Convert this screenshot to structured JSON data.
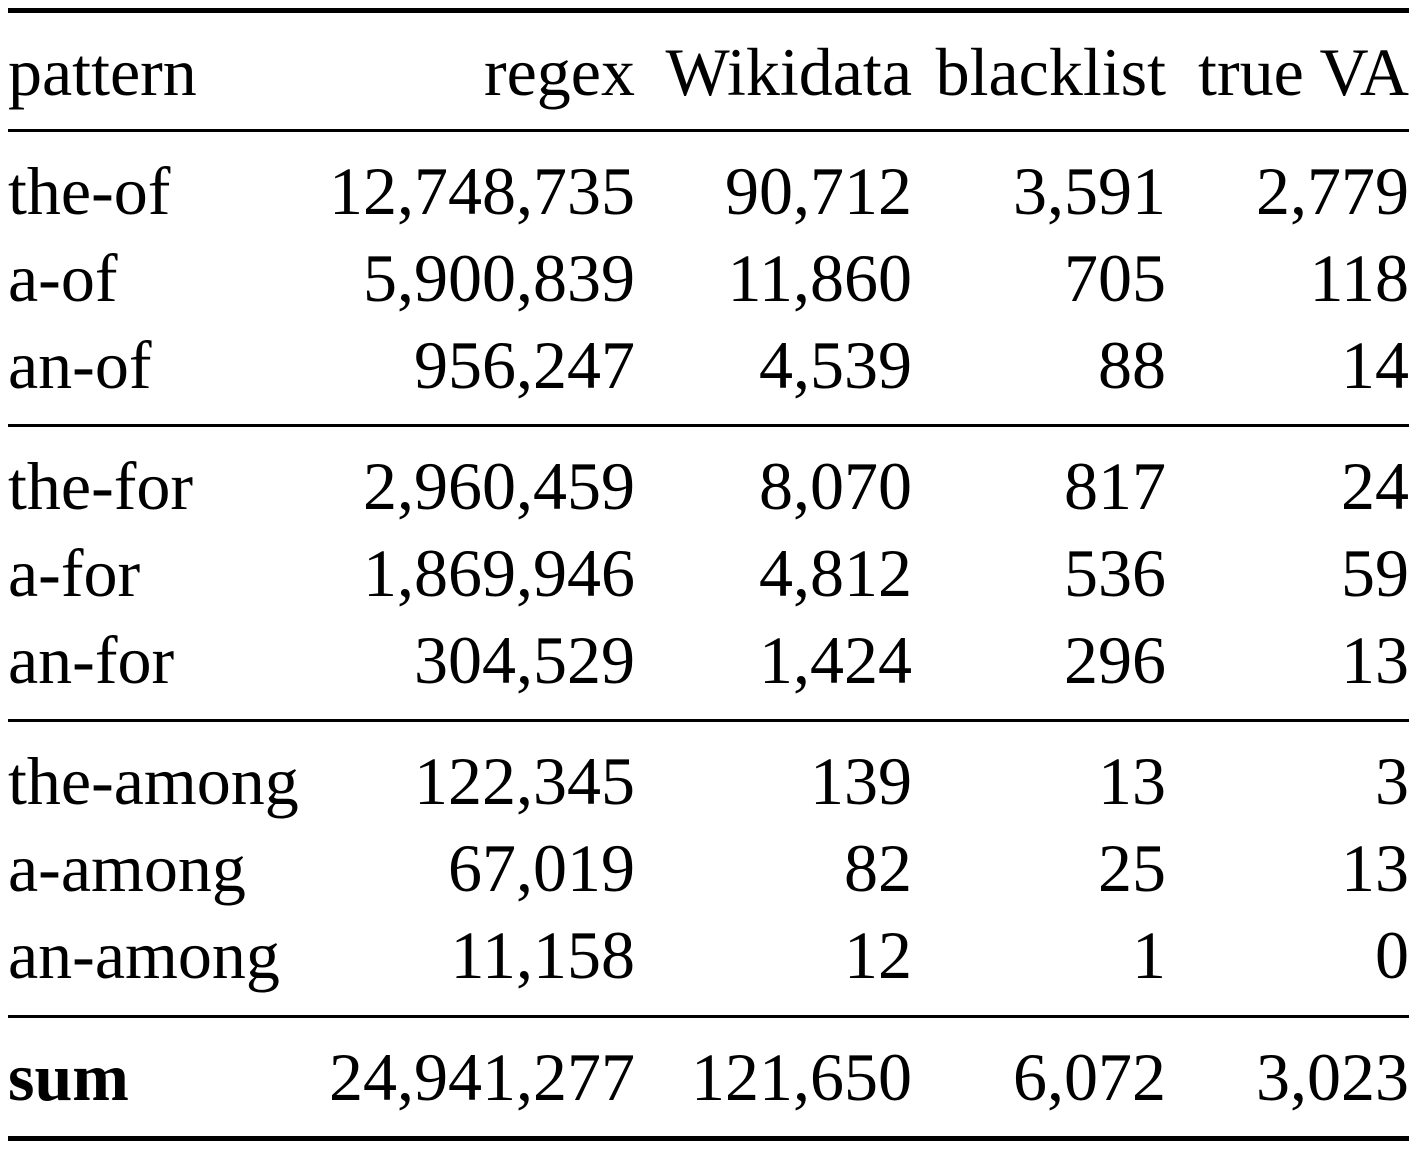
{
  "table": {
    "headers": [
      "pattern",
      "regex",
      "Wikidata",
      "blacklist",
      "true VA"
    ],
    "groups": [
      [
        [
          "the-of",
          "12,748,735",
          "90,712",
          "3,591",
          "2,779"
        ],
        [
          "a-of",
          "5,900,839",
          "11,860",
          "705",
          "118"
        ],
        [
          "an-of",
          "956,247",
          "4,539",
          "88",
          "14"
        ]
      ],
      [
        [
          "the-for",
          "2,960,459",
          "8,070",
          "817",
          "24"
        ],
        [
          "a-for",
          "1,869,946",
          "4,812",
          "536",
          "59"
        ],
        [
          "an-for",
          "304,529",
          "1,424",
          "296",
          "13"
        ]
      ],
      [
        [
          "the-among",
          "122,345",
          "139",
          "13",
          "3"
        ],
        [
          "a-among",
          "67,019",
          "82",
          "25",
          "13"
        ],
        [
          "an-among",
          "11,158",
          "12",
          "1",
          "0"
        ]
      ]
    ],
    "sum": [
      "sum",
      "24,941,277",
      "121,650",
      "6,072",
      "3,023"
    ]
  }
}
